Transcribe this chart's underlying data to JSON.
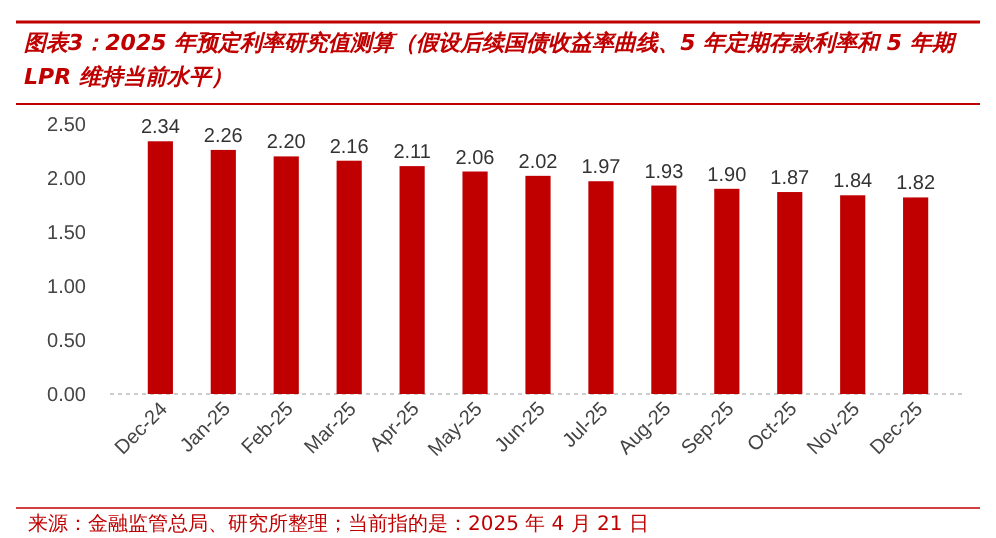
{
  "chart_data": {
    "type": "bar",
    "title": "图表3：2025 年预定利率研究值测算（假设后续国债收益率曲线、5 年定期存款利率和 5 年期 LPR 维持当前水平）",
    "categories": [
      "Dec-24",
      "Jan-25",
      "Feb-25",
      "Mar-25",
      "Apr-25",
      "May-25",
      "Jun-25",
      "Jul-25",
      "Aug-25",
      "Sep-25",
      "Oct-25",
      "Nov-25",
      "Dec-25"
    ],
    "values": [
      2.34,
      2.26,
      2.2,
      2.16,
      2.11,
      2.06,
      2.02,
      1.97,
      1.93,
      1.9,
      1.87,
      1.84,
      1.82
    ],
    "value_labels": [
      "2.34",
      "2.26",
      "2.20",
      "2.16",
      "2.11",
      "2.06",
      "2.02",
      "1.97",
      "1.93",
      "1.90",
      "1.87",
      "1.84",
      "1.82"
    ],
    "color": "#c00000",
    "ylim": [
      0,
      2.5
    ],
    "yticks": [
      {
        "value": 0,
        "label": "0.00"
      },
      {
        "value": 0.5,
        "label": "0.50"
      },
      {
        "value": 1,
        "label": "1.00"
      },
      {
        "value": 1.5,
        "label": "1.50"
      },
      {
        "value": 2,
        "label": "2.00"
      },
      {
        "value": 2.5,
        "label": "2.50"
      }
    ],
    "annotations": [
      "来源：金融监管总局、研究所整理；当前指的是：2025 年 4 月 21 日"
    ]
  }
}
